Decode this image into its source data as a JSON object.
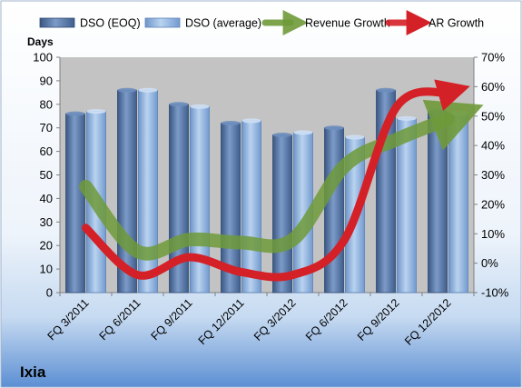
{
  "company": "Ixia",
  "chart_data": {
    "type": "bar",
    "categories": [
      "FQ 3/2011",
      "FQ 6/2011",
      "FQ 9/2011",
      "FQ 12/2011",
      "FQ 3/2012",
      "FQ 6/2012",
      "FQ 9/2012",
      "FQ 12/2012"
    ],
    "ylabel": "Days",
    "ylim": [
      0,
      100
    ],
    "yticks": [
      "0",
      "10",
      "20",
      "30",
      "40",
      "50",
      "60",
      "70",
      "80",
      "90",
      "100"
    ],
    "y2lim": [
      -10,
      70
    ],
    "y2ticks": [
      "-10%",
      "0%",
      "10%",
      "20%",
      "30%",
      "40%",
      "50%",
      "60%",
      "70%"
    ],
    "legend_position": "top",
    "grid": false,
    "series": [
      {
        "name": "DSO (EOQ)",
        "kind": "bar",
        "axis": "left",
        "color": "#4a6a9c",
        "values": [
          76,
          86,
          80,
          72,
          67,
          70,
          86,
          77
        ]
      },
      {
        "name": "DSO (average)",
        "kind": "bar",
        "axis": "left",
        "color": "#8eb4e3",
        "values": [
          77,
          86,
          79,
          73,
          68,
          66,
          74,
          76
        ]
      },
      {
        "name": "Revenue Growth",
        "kind": "line",
        "axis": "right",
        "color": "#6f9a3a",
        "values": [
          26,
          4,
          8,
          7,
          8,
          33,
          42,
          49
        ]
      },
      {
        "name": "AR Growth",
        "kind": "line",
        "axis": "right",
        "color": "#d42027",
        "values": [
          12,
          -4,
          2,
          -3,
          -4,
          8,
          53,
          58
        ]
      }
    ]
  }
}
